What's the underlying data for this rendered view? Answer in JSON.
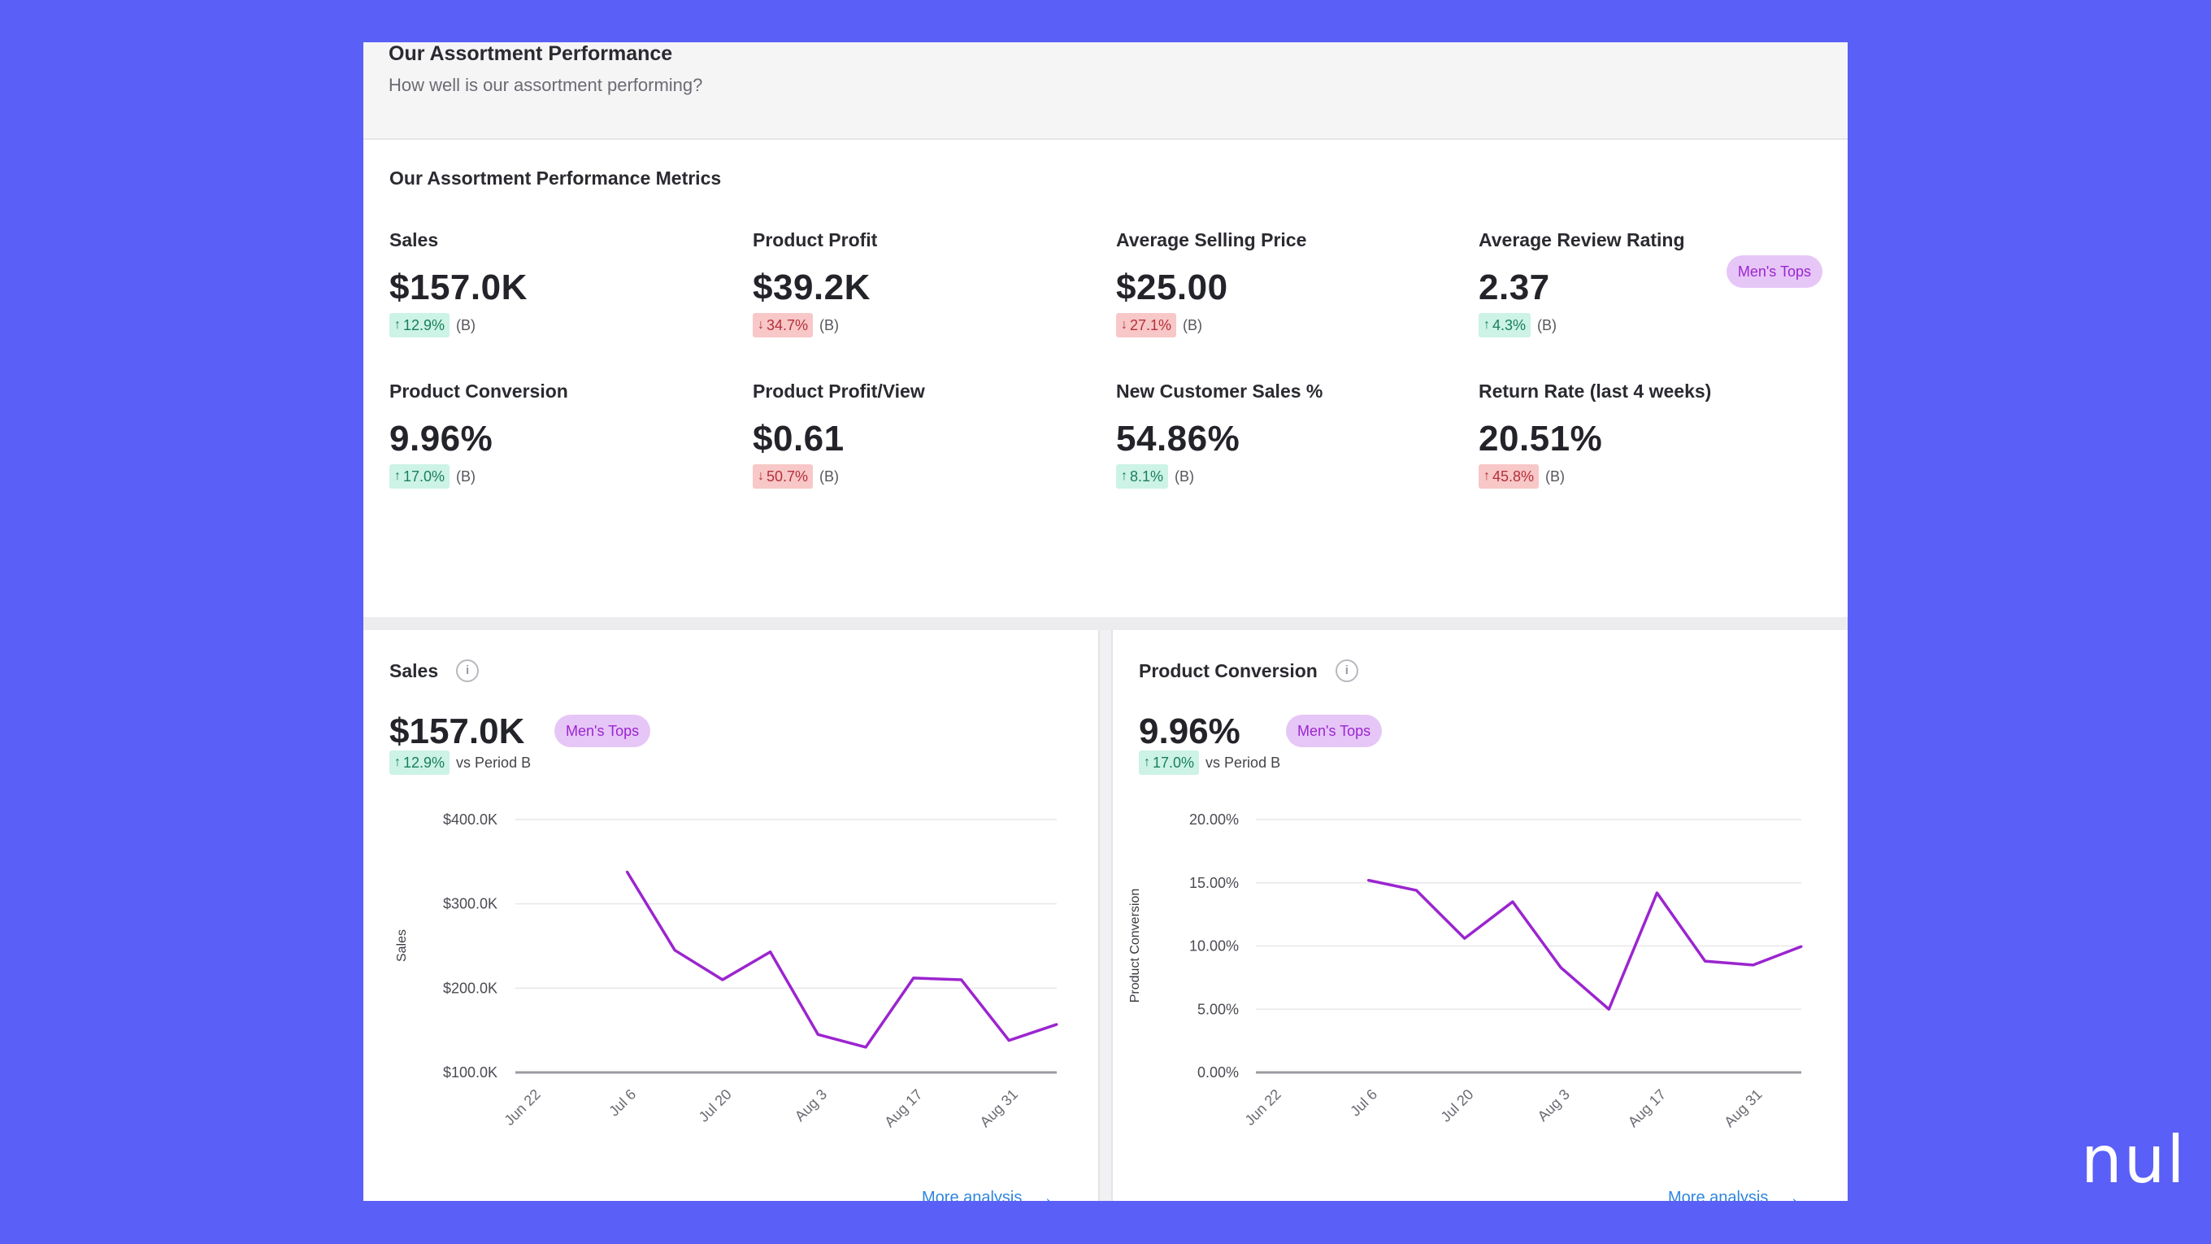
{
  "header": {
    "title": "Our Assortment Performance",
    "subtitle": "How well is our assortment performing?"
  },
  "metrics_section": {
    "title": "Our Assortment Performance Metrics",
    "filter_pill": "Men's Tops",
    "metrics": [
      {
        "label": "Sales",
        "value": "$157.0K",
        "delta": "12.9%",
        "direction": "up",
        "tag": "(B)"
      },
      {
        "label": "Product Profit",
        "value": "$39.2K",
        "delta": "34.7%",
        "direction": "down",
        "tag": "(B)"
      },
      {
        "label": "Average Selling Price",
        "value": "$25.00",
        "delta": "27.1%",
        "direction": "down",
        "tag": "(B)"
      },
      {
        "label": "Average Review Rating",
        "value": "2.37",
        "delta": "4.3%",
        "direction": "up",
        "tag": "(B)"
      },
      {
        "label": "Product Conversion",
        "value": "9.96%",
        "delta": "17.0%",
        "direction": "up",
        "tag": "(B)"
      },
      {
        "label": "Product Profit/View",
        "value": "$0.61",
        "delta": "50.7%",
        "direction": "down",
        "tag": "(B)"
      },
      {
        "label": "New Customer Sales %",
        "value": "54.86%",
        "delta": "8.1%",
        "direction": "up",
        "tag": "(B)"
      },
      {
        "label": "Return Rate (last 4 weeks)",
        "value": "20.51%",
        "delta": "45.8%",
        "direction": "up-bad",
        "tag": "(B)"
      }
    ]
  },
  "colors": {
    "background": "#5a5ff7",
    "line": "#9b25cf",
    "pill_bg": "#e6c6f7",
    "up": "#ccf3e6",
    "down": "#f8c7c7",
    "link": "#2f86de"
  },
  "icons": {
    "info": "info-icon",
    "up_arrow": "↑",
    "down_arrow": "↓",
    "more_arrow": "→"
  },
  "charts": [
    {
      "title": "Sales",
      "value": "$157.0K",
      "pill": "Men's Tops",
      "delta": "12.9%",
      "vs_text": "vs Period B",
      "more_label": "More analysis",
      "ylabel": "Sales"
    },
    {
      "title": "Product Conversion",
      "value": "9.96%",
      "pill": "Men's Tops",
      "delta": "17.0%",
      "vs_text": "vs Period B",
      "more_label": "More analysis",
      "ylabel": "Product Conversion"
    }
  ],
  "chart_data": [
    {
      "type": "line",
      "ylabel": "Sales",
      "xlabel": "",
      "x_ticks": [
        "Jun 22",
        "Jul 6",
        "Jul 20",
        "Aug 3",
        "Aug 17",
        "Aug 31"
      ],
      "y_ticks": [
        "$100.0K",
        "$200.0K",
        "$300.0K",
        "$400.0K"
      ],
      "ylim": [
        100000,
        400000
      ],
      "grid": true,
      "series": [
        {
          "x": [
            "Jun 29",
            "Jul 6",
            "Jul 13",
            "Jul 20",
            "Jul 27",
            "Aug 3",
            "Aug 10",
            "Aug 17",
            "Aug 24",
            "Aug 31",
            "Sep 7"
          ],
          "values": [
            null,
            338000,
            245000,
            210000,
            243000,
            145000,
            130000,
            212000,
            210000,
            138000,
            157000
          ]
        }
      ]
    },
    {
      "type": "line",
      "ylabel": "Product Conversion",
      "xlabel": "",
      "x_ticks": [
        "Jun 22",
        "Jul 6",
        "Jul 20",
        "Aug 3",
        "Aug 17",
        "Aug 31"
      ],
      "y_ticks": [
        "0.00%",
        "5.00%",
        "10.00%",
        "15.00%",
        "20.00%"
      ],
      "ylim": [
        0,
        20
      ],
      "grid": true,
      "series": [
        {
          "x": [
            "Jun 29",
            "Jul 6",
            "Jul 13",
            "Jul 20",
            "Jul 27",
            "Aug 3",
            "Aug 10",
            "Aug 17",
            "Aug 24",
            "Aug 31",
            "Sep 7"
          ],
          "values": [
            null,
            15.2,
            14.4,
            10.6,
            13.5,
            8.3,
            5.0,
            14.2,
            8.8,
            8.5,
            9.96
          ]
        }
      ]
    }
  ],
  "logo": "nul"
}
